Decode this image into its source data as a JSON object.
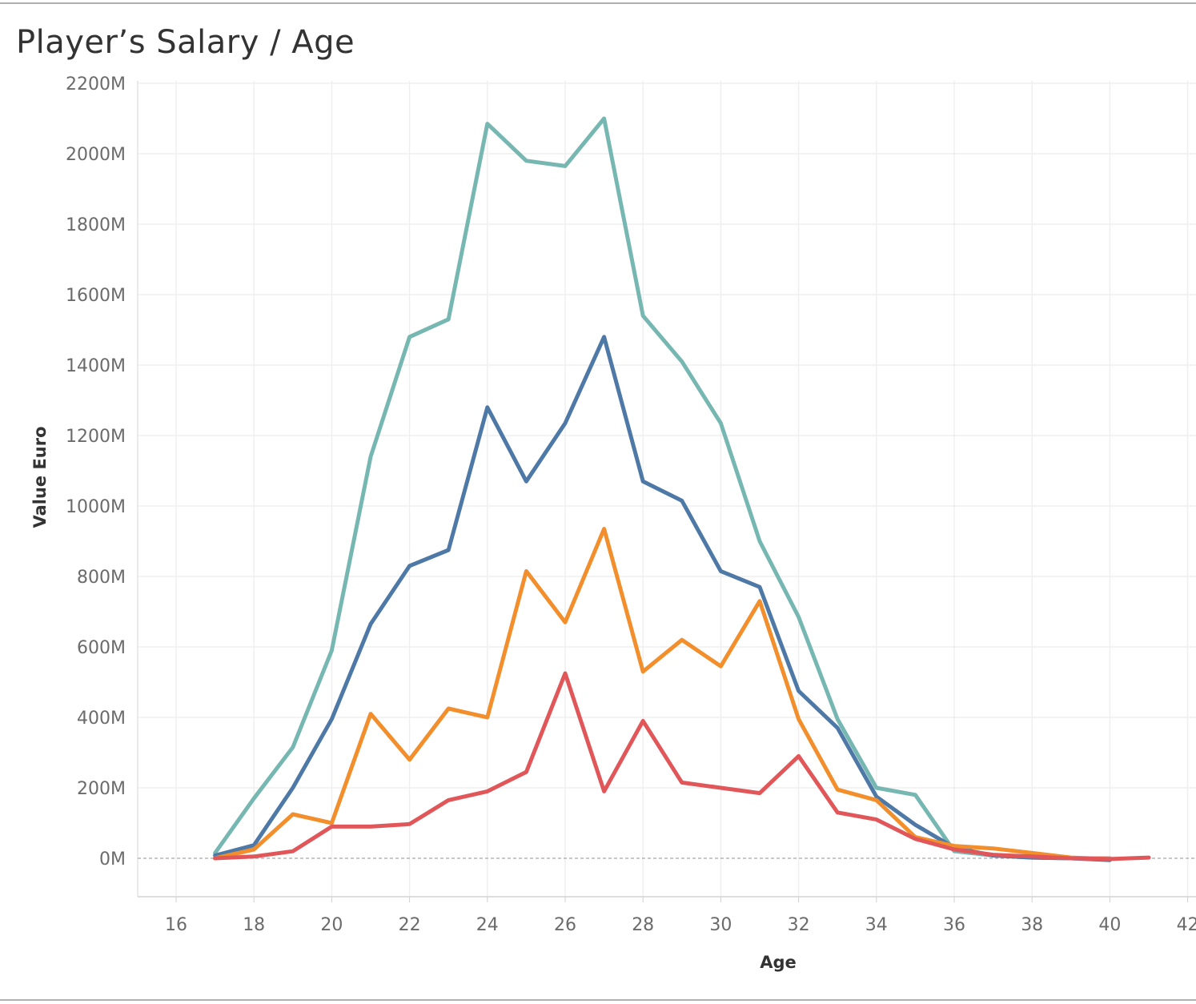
{
  "title": "Player’s Salary / Age",
  "chart_data": {
    "type": "line",
    "title": "Player’s Salary / Age",
    "xlabel": "Age",
    "ylabel": "Value Euro",
    "xlim": [
      15,
      42
    ],
    "ylim": [
      -110,
      2230
    ],
    "x_ticks": [
      16,
      18,
      20,
      22,
      24,
      26,
      28,
      30,
      32,
      34,
      36,
      38,
      40,
      42
    ],
    "x_tick_labels": [
      "16",
      "18",
      "20",
      "22",
      "24",
      "26",
      "28",
      "30",
      "32",
      "34",
      "36",
      "38",
      "40",
      "42"
    ],
    "y_ticks": [
      0,
      200,
      400,
      600,
      800,
      1000,
      1200,
      1400,
      1600,
      1800,
      2000,
      2200
    ],
    "y_tick_labels": [
      "0M",
      "200M",
      "400M",
      "600M",
      "800M",
      "1000M",
      "1200M",
      "1400M",
      "1600M",
      "1800M",
      "2000M",
      "2200M"
    ],
    "grid": true,
    "reference_line": 0,
    "series": [
      {
        "color": "#76b7b2",
        "x": [
          17,
          18,
          19,
          20,
          21,
          22,
          23,
          24,
          25,
          26,
          27,
          28,
          29,
          30,
          31,
          32,
          33,
          34,
          35,
          36,
          37,
          38,
          39,
          40
        ],
        "y": [
          15,
          170,
          315,
          590,
          1140,
          1480,
          1530,
          2085,
          1980,
          1965,
          2100,
          1540,
          1410,
          1235,
          900,
          685,
          395,
          200,
          180,
          20,
          8,
          2,
          0,
          0
        ]
      },
      {
        "color": "#4e79a7",
        "x": [
          17,
          18,
          19,
          20,
          21,
          22,
          23,
          24,
          25,
          26,
          27,
          28,
          29,
          30,
          31,
          32,
          33,
          34,
          35,
          36,
          37,
          38,
          39,
          40
        ],
        "y": [
          8,
          37,
          200,
          395,
          665,
          830,
          875,
          1280,
          1070,
          1235,
          1480,
          1070,
          1015,
          815,
          770,
          475,
          370,
          175,
          95,
          30,
          8,
          2,
          0,
          -5
        ]
      },
      {
        "color": "#f28e2b",
        "x": [
          17,
          18,
          19,
          20,
          21,
          22,
          23,
          24,
          25,
          26,
          27,
          28,
          29,
          30,
          31,
          32,
          33,
          34,
          35,
          36,
          37,
          38,
          39,
          40
        ],
        "y": [
          0,
          25,
          125,
          100,
          410,
          280,
          425,
          400,
          815,
          670,
          935,
          530,
          620,
          545,
          730,
          395,
          195,
          165,
          60,
          35,
          28,
          15,
          2,
          -2
        ]
      },
      {
        "color": "#e15759",
        "x": [
          17,
          18,
          19,
          20,
          21,
          22,
          23,
          24,
          25,
          26,
          27,
          28,
          29,
          30,
          31,
          32,
          33,
          34,
          35,
          36,
          37,
          38,
          39,
          40,
          41
        ],
        "y": [
          0,
          5,
          20,
          90,
          90,
          97,
          165,
          190,
          245,
          525,
          190,
          390,
          215,
          200,
          185,
          290,
          130,
          110,
          55,
          25,
          10,
          5,
          0,
          -2,
          2
        ]
      }
    ]
  }
}
